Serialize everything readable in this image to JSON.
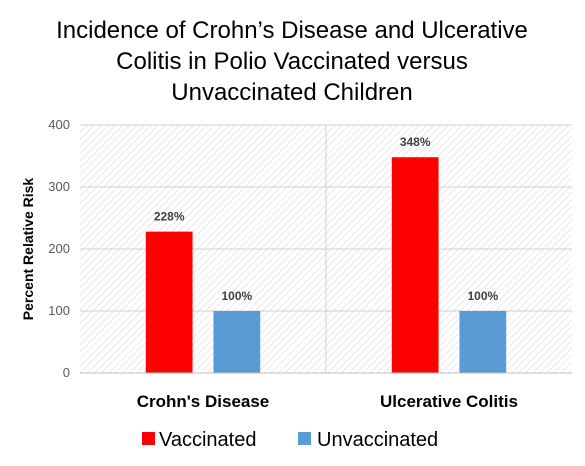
{
  "chart_data": {
    "type": "bar",
    "title_lines": [
      "Incidence of Crohn’s Disease and Ulcerative",
      "Colitis in Polio Vaccinated versus",
      "Unvaccinated Children"
    ],
    "xlabel": "",
    "ylabel": "Percent Relative Risk",
    "ylim": [
      0,
      400
    ],
    "yticks": [
      0,
      100,
      200,
      300,
      400
    ],
    "categories": [
      "Crohn's Disease",
      "Ulcerative Colitis"
    ],
    "series": [
      {
        "name": "Vaccinated",
        "color": "#ff0000",
        "values": [
          228,
          348
        ],
        "labels": [
          "228%",
          "348%"
        ]
      },
      {
        "name": "Unvaccinated",
        "color": "#5b9bd5",
        "values": [
          100,
          100
        ],
        "labels": [
          "100%",
          "100%"
        ]
      }
    ],
    "legend_position": "bottom",
    "grid": true,
    "plot_background": "hatched-light-gray"
  }
}
